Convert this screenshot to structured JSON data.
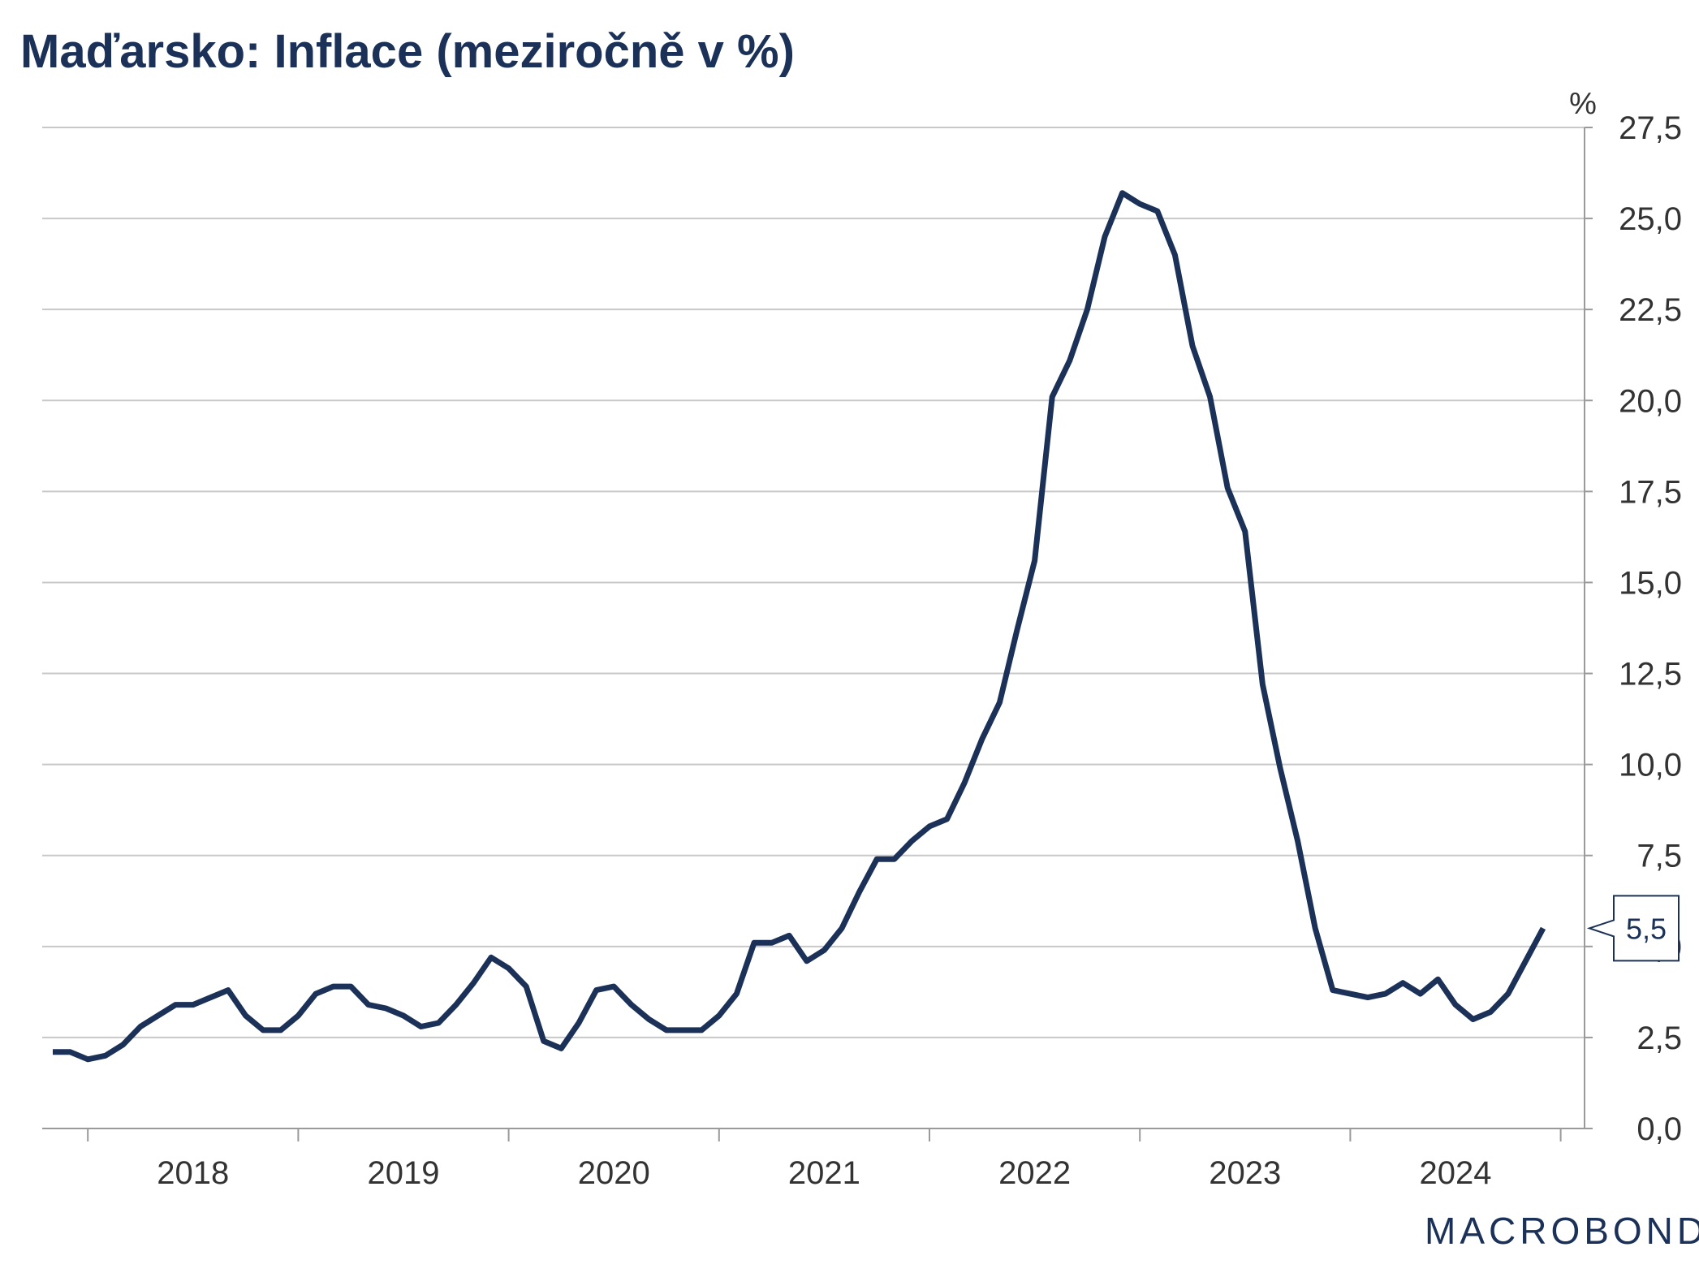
{
  "title": "Maďarsko: Inflace (meziročně v %)",
  "logo": "MACROBOND",
  "colors": {
    "line": "#1b3158",
    "grid": "#c8c8c8",
    "axis": "#9a9a9a",
    "text": "#333333",
    "title": "#1b3158"
  },
  "chart_data": {
    "type": "line",
    "title": "Maďarsko: Inflace (meziročně v %)",
    "xlabel": "",
    "ylabel": "%",
    "y_axis_side": "right",
    "ylim": [
      0,
      27.5
    ],
    "grid": true,
    "y_ticks": [
      "0,0",
      "2,5",
      "5,0",
      "7,5",
      "10,0",
      "12,5",
      "15,0",
      "17,5",
      "20,0",
      "22,5",
      "25,0",
      "27,5"
    ],
    "x_ticks": [
      "2018",
      "2019",
      "2020",
      "2021",
      "2022",
      "2023",
      "2024"
    ],
    "start": "2017-11",
    "frequency": "monthly",
    "last_value_label": "5,5",
    "series": [
      {
        "values": [
          2.1,
          2.1,
          1.9,
          2.0,
          2.3,
          2.8,
          3.1,
          3.4,
          3.4,
          3.6,
          3.8,
          3.1,
          2.7,
          2.7,
          3.1,
          3.7,
          3.9,
          3.9,
          3.4,
          3.3,
          3.1,
          2.8,
          2.9,
          3.4,
          4.0,
          4.7,
          4.4,
          3.9,
          2.4,
          2.2,
          2.9,
          3.8,
          3.9,
          3.4,
          3.0,
          2.7,
          2.7,
          2.7,
          3.1,
          3.7,
          5.1,
          5.1,
          5.3,
          4.6,
          4.9,
          5.5,
          6.5,
          7.4,
          7.4,
          7.9,
          8.3,
          8.5,
          9.5,
          10.7,
          11.7,
          13.7,
          15.6,
          20.1,
          21.1,
          22.5,
          24.5,
          25.7,
          25.4,
          25.2,
          24.0,
          21.5,
          20.1,
          17.6,
          16.4,
          12.2,
          9.9,
          7.9,
          5.5,
          3.8,
          3.7,
          3.6,
          3.7,
          4.0,
          3.7,
          4.1,
          3.4,
          3.0,
          3.2,
          3.7,
          4.6,
          5.5
        ]
      }
    ]
  }
}
